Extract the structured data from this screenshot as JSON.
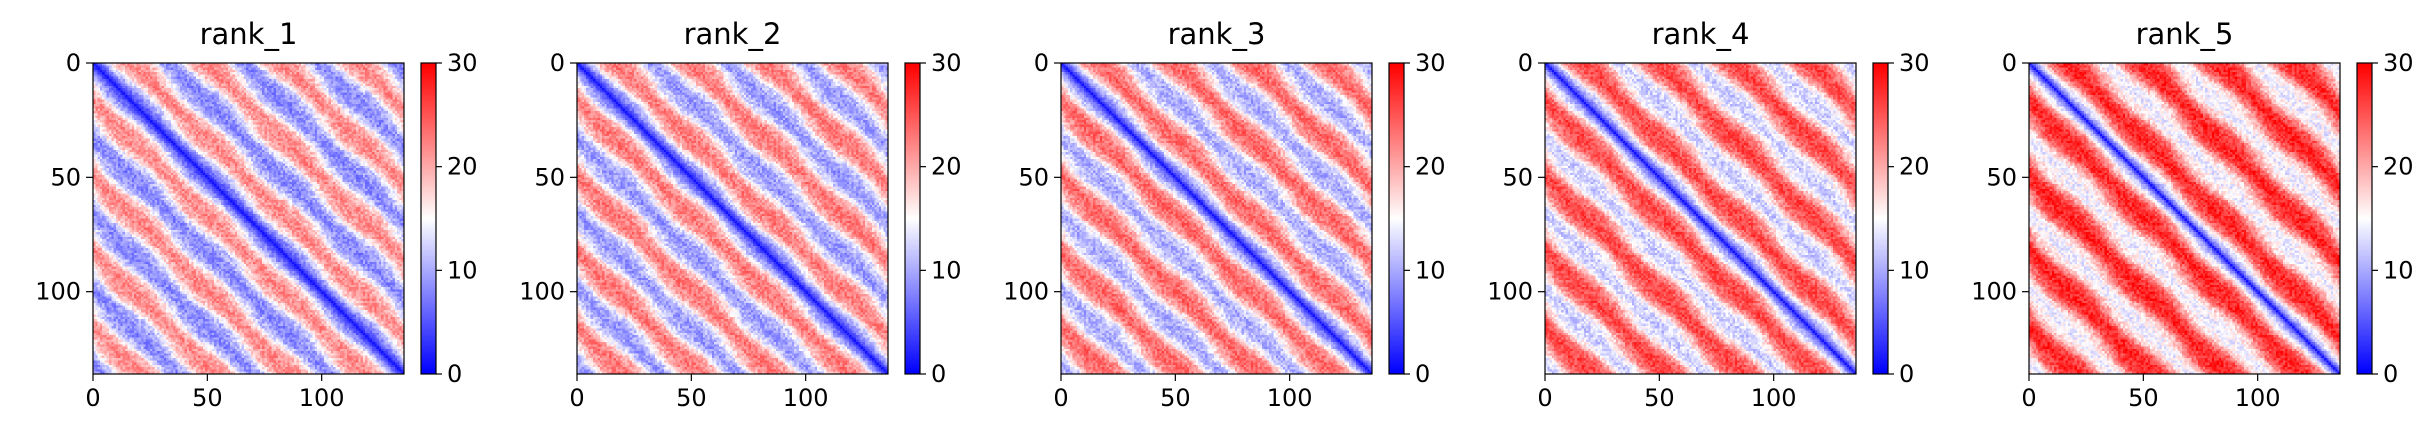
{
  "chart_data": [
    {
      "type": "heatmap",
      "title": "rank_1",
      "xlabel": "",
      "ylabel": "",
      "size": 136,
      "xlim": [
        0,
        136
      ],
      "ylim": [
        136,
        0
      ],
      "x_ticks": [
        0,
        50,
        100
      ],
      "y_ticks": [
        0,
        50,
        100
      ],
      "colorbar": {
        "cmap": "bwr",
        "vmin": 0,
        "vmax": 30,
        "ticks": [
          0,
          10,
          20,
          30
        ]
      },
      "pattern": {
        "period": 33,
        "near_diagonal_value": 1,
        "off_diagonal_mean": 15
      }
    },
    {
      "type": "heatmap",
      "title": "rank_2",
      "xlabel": "",
      "ylabel": "",
      "size": 136,
      "xlim": [
        0,
        136
      ],
      "ylim": [
        136,
        0
      ],
      "x_ticks": [
        0,
        50,
        100
      ],
      "y_ticks": [
        0,
        50,
        100
      ],
      "colorbar": {
        "cmap": "bwr",
        "vmin": 0,
        "vmax": 30,
        "ticks": [
          0,
          10,
          20,
          30
        ]
      },
      "pattern": {
        "period": 33,
        "near_diagonal_value": 1,
        "off_diagonal_mean": 16
      }
    },
    {
      "type": "heatmap",
      "title": "rank_3",
      "xlabel": "",
      "ylabel": "",
      "size": 136,
      "xlim": [
        0,
        136
      ],
      "ylim": [
        136,
        0
      ],
      "x_ticks": [
        0,
        50,
        100
      ],
      "y_ticks": [
        0,
        50,
        100
      ],
      "colorbar": {
        "cmap": "bwr",
        "vmin": 0,
        "vmax": 30,
        "ticks": [
          0,
          10,
          20,
          30
        ]
      },
      "pattern": {
        "period": 33,
        "near_diagonal_value": 1,
        "off_diagonal_mean": 17
      }
    },
    {
      "type": "heatmap",
      "title": "rank_4",
      "xlabel": "",
      "ylabel": "",
      "size": 136,
      "xlim": [
        0,
        136
      ],
      "ylim": [
        136,
        0
      ],
      "x_ticks": [
        0,
        50,
        100
      ],
      "y_ticks": [
        0,
        50,
        100
      ],
      "colorbar": {
        "cmap": "bwr",
        "vmin": 0,
        "vmax": 30,
        "ticks": [
          0,
          10,
          20,
          30
        ]
      },
      "pattern": {
        "period": 33,
        "near_diagonal_value": 1,
        "off_diagonal_mean": 19
      }
    },
    {
      "type": "heatmap",
      "title": "rank_5",
      "xlabel": "",
      "ylabel": "",
      "size": 136,
      "xlim": [
        0,
        136
      ],
      "ylim": [
        136,
        0
      ],
      "x_ticks": [
        0,
        50,
        100
      ],
      "y_ticks": [
        0,
        50,
        100
      ],
      "colorbar": {
        "cmap": "bwr",
        "vmin": 0,
        "vmax": 30,
        "ticks": [
          0,
          10,
          20,
          30
        ]
      },
      "pattern": {
        "period": 33,
        "near_diagonal_value": 1,
        "off_diagonal_mean": 21
      }
    }
  ]
}
